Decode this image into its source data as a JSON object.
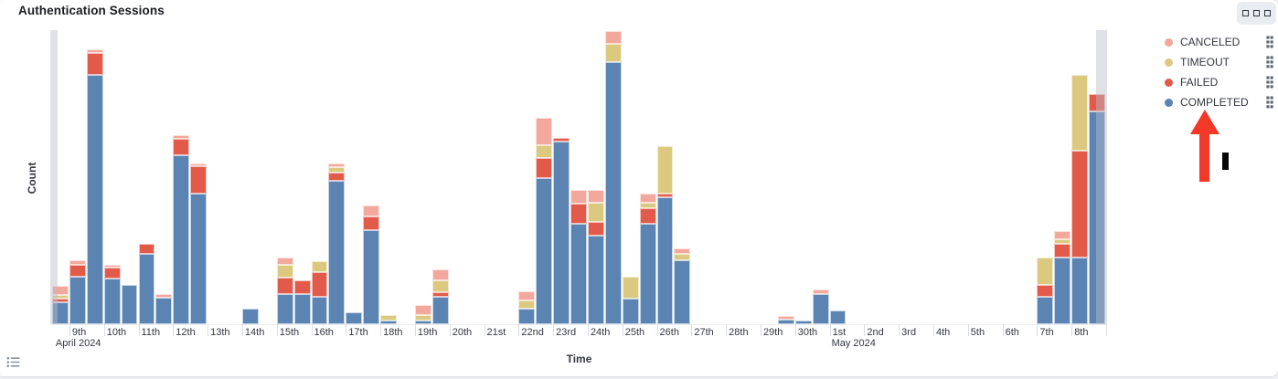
{
  "panel": {
    "title": "Authentication Sessions"
  },
  "legend": {
    "items": [
      {
        "id": "canceled",
        "label": "CANCELED",
        "color": "#F2A89C"
      },
      {
        "id": "timeout",
        "label": "TIMEOUT",
        "color": "#DCC980"
      },
      {
        "id": "failed",
        "label": "FAILED",
        "color": "#E25A49"
      },
      {
        "id": "completed",
        "label": "COMPLETED",
        "color": "#5B84B2"
      }
    ]
  },
  "annotations": {
    "arrow": {
      "shape": "up-arrow",
      "color": "#F23827",
      "points_to": "COMPLETED legend item"
    },
    "cursor_bar": {
      "shape": "vertical-bar",
      "color": "#050505"
    }
  },
  "chart_data": {
    "type": "bar",
    "stacked": true,
    "title": "Authentication Sessions",
    "xlabel": "Time",
    "ylabel": "Count",
    "legend_position": "right",
    "grid": false,
    "y_axis_tick_labels_visible": false,
    "ylim": [
      0,
      322
    ],
    "values_note": "Counts estimated from pixel heights; y-axis shows no numeric ticks",
    "bucket_hours": 12,
    "x_start": "2024-04-08 12:00",
    "x_end": "2024-05-08 24:00",
    "bucket_count": 61,
    "series_order_bottom_to_top": [
      "completed",
      "failed",
      "timeout",
      "canceled"
    ],
    "x_ticks": [
      {
        "label": "9th",
        "sub": "April 2024",
        "sub_dx": -18
      },
      {
        "label": "10th"
      },
      {
        "label": "11th"
      },
      {
        "label": "12th"
      },
      {
        "label": "13th"
      },
      {
        "label": "14th"
      },
      {
        "label": "15th"
      },
      {
        "label": "16th"
      },
      {
        "label": "17th"
      },
      {
        "label": "18th"
      },
      {
        "label": "19th"
      },
      {
        "label": "20th"
      },
      {
        "label": "21st"
      },
      {
        "label": "22nd"
      },
      {
        "label": "23rd"
      },
      {
        "label": "24th"
      },
      {
        "label": "25th"
      },
      {
        "label": "26th"
      },
      {
        "label": "27th"
      },
      {
        "label": "28th"
      },
      {
        "label": "29th"
      },
      {
        "label": "30th"
      },
      {
        "label": "1st",
        "sub": "May 2024",
        "sub_dx": -1
      },
      {
        "label": "2nd"
      },
      {
        "label": "3rd"
      },
      {
        "label": "4th"
      },
      {
        "label": "5th"
      },
      {
        "label": "6th"
      },
      {
        "label": "7th"
      },
      {
        "label": "8th"
      }
    ],
    "bars": [
      {
        "bucket": 0,
        "completed": 24,
        "failed": 4,
        "timeout": 4,
        "canceled": 10
      },
      {
        "bucket": 1,
        "completed": 52,
        "failed": 13,
        "timeout": 0,
        "canceled": 5
      },
      {
        "bucket": 2,
        "completed": 273,
        "failed": 24,
        "timeout": 0,
        "canceled": 4
      },
      {
        "bucket": 3,
        "completed": 50,
        "failed": 12,
        "timeout": 0,
        "canceled": 3
      },
      {
        "bucket": 4,
        "completed": 43,
        "failed": 0,
        "timeout": 0,
        "canceled": 0
      },
      {
        "bucket": 5,
        "completed": 77,
        "failed": 11,
        "timeout": 0,
        "canceled": 0
      },
      {
        "bucket": 6,
        "completed": 29,
        "failed": 0,
        "timeout": 0,
        "canceled": 4
      },
      {
        "bucket": 7,
        "completed": 185,
        "failed": 18,
        "timeout": 0,
        "canceled": 4
      },
      {
        "bucket": 8,
        "completed": 143,
        "failed": 30,
        "timeout": 0,
        "canceled": 3
      },
      {
        "bucket": 11,
        "completed": 17,
        "failed": 0,
        "timeout": 0,
        "canceled": 0
      },
      {
        "bucket": 13,
        "completed": 33,
        "failed": 18,
        "timeout": 14,
        "canceled": 8
      },
      {
        "bucket": 14,
        "completed": 33,
        "failed": 15,
        "timeout": 0,
        "canceled": 0
      },
      {
        "bucket": 15,
        "completed": 30,
        "failed": 27,
        "timeout": 12,
        "canceled": 0
      },
      {
        "bucket": 16,
        "completed": 157,
        "failed": 9,
        "timeout": 6,
        "canceled": 4
      },
      {
        "bucket": 17,
        "completed": 13,
        "failed": 0,
        "timeout": 0,
        "canceled": 0
      },
      {
        "bucket": 18,
        "completed": 103,
        "failed": 15,
        "timeout": 0,
        "canceled": 12
      },
      {
        "bucket": 19,
        "completed": 4,
        "failed": 0,
        "timeout": 6,
        "canceled": 0
      },
      {
        "bucket": 21,
        "completed": 4,
        "failed": 0,
        "timeout": 6,
        "canceled": 11
      },
      {
        "bucket": 22,
        "completed": 30,
        "failed": 5,
        "timeout": 13,
        "canceled": 12
      },
      {
        "bucket": 27,
        "completed": 17,
        "failed": 0,
        "timeout": 9,
        "canceled": 10
      },
      {
        "bucket": 28,
        "completed": 160,
        "failed": 22,
        "timeout": 14,
        "canceled": 30
      },
      {
        "bucket": 29,
        "completed": 200,
        "failed": 4,
        "timeout": 0,
        "canceled": 0
      },
      {
        "bucket": 30,
        "completed": 110,
        "failed": 22,
        "timeout": 0,
        "canceled": 15
      },
      {
        "bucket": 31,
        "completed": 97,
        "failed": 15,
        "timeout": 21,
        "canceled": 14
      },
      {
        "bucket": 32,
        "completed": 287,
        "failed": 0,
        "timeout": 20,
        "canceled": 14
      },
      {
        "bucket": 33,
        "completed": 28,
        "failed": 0,
        "timeout": 24,
        "canceled": 0
      },
      {
        "bucket": 34,
        "completed": 110,
        "failed": 17,
        "timeout": 6,
        "canceled": 10
      },
      {
        "bucket": 35,
        "completed": 139,
        "failed": 4,
        "timeout": 52,
        "canceled": 0
      },
      {
        "bucket": 36,
        "completed": 70,
        "failed": 0,
        "timeout": 7,
        "canceled": 6
      },
      {
        "bucket": 42,
        "completed": 5,
        "failed": 0,
        "timeout": 0,
        "canceled": 4
      },
      {
        "bucket": 43,
        "completed": 4,
        "failed": 0,
        "timeout": 0,
        "canceled": 0
      },
      {
        "bucket": 44,
        "completed": 33,
        "failed": 0,
        "timeout": 0,
        "canceled": 5
      },
      {
        "bucket": 45,
        "completed": 15,
        "failed": 0,
        "timeout": 0,
        "canceled": 0
      },
      {
        "bucket": 57,
        "completed": 30,
        "failed": 13,
        "timeout": 30,
        "canceled": 0
      },
      {
        "bucket": 58,
        "completed": 73,
        "failed": 15,
        "timeout": 5,
        "canceled": 9
      },
      {
        "bucket": 59,
        "completed": 73,
        "failed": 117,
        "timeout": 83,
        "canceled": 0
      },
      {
        "bucket": 60,
        "completed": 233,
        "failed": 19,
        "timeout": 0,
        "canceled": 0
      }
    ],
    "partial_bucket_overlays": [
      {
        "edge": "left",
        "dx": -2,
        "w": 8
      },
      {
        "edge": "right",
        "dx": 1142,
        "w": 12
      }
    ]
  }
}
